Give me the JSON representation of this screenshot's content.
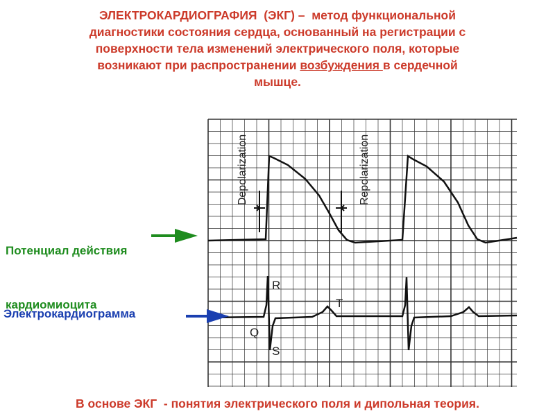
{
  "header": {
    "lines": [
      "ЭЛЕКТРОКАРДИОГРАФИЯ  (ЭКГ) –  метод функциональной",
      "диагностики состояния сердца, основанный на регистрации с",
      "поверхности тела изменений электрического поля, которые"
    ],
    "line4": {
      "before": "возникают при распространении ",
      "underlined": "возбуждения ",
      "after": "в сердечной"
    },
    "line5": "мышце."
  },
  "labels": {
    "action_potential": [
      "Потенциал действия",
      "кардиомиоцита"
    ],
    "ecg": "Электрокардиограмма"
  },
  "figure": {
    "depolarization": "Depolarization",
    "repolarization": "Repolarization",
    "r": "R",
    "t": "T",
    "q": "Q",
    "s": "S"
  },
  "footer": "В основе ЭКГ  - понятия электрического поля и дипольная теория."
}
